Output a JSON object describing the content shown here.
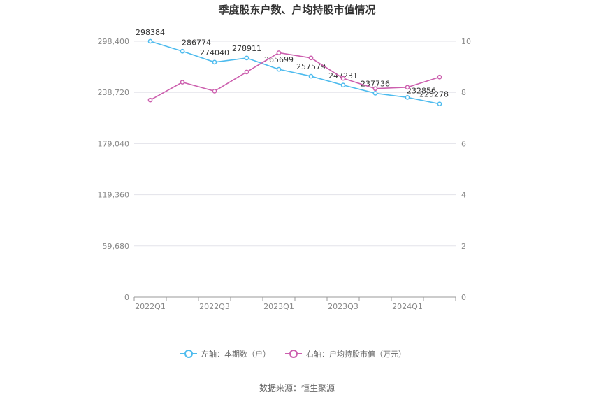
{
  "chart_data": {
    "type": "line",
    "title": "季度股东户数、户均持股市值情况",
    "categories": [
      "2022Q1",
      "2022Q2",
      "2022Q3",
      "2022Q4",
      "2023Q1",
      "2023Q2",
      "2023Q3",
      "2023Q4",
      "2024Q1",
      "2024Q2"
    ],
    "x_tick_labels": [
      "2022Q1",
      "2022Q3",
      "2023Q1",
      "2023Q3",
      "2024Q1"
    ],
    "left_axis": {
      "ylim": [
        0,
        298400
      ],
      "ticks": [
        "0",
        "59,680",
        "119,360",
        "179,040",
        "238,720",
        "298,400"
      ]
    },
    "right_axis": {
      "ylim": [
        0,
        10
      ],
      "ticks": [
        "0",
        "2",
        "4",
        "6",
        "8",
        "10"
      ]
    },
    "grid": true,
    "legend_position": "bottom",
    "series": [
      {
        "name": "左轴：本期数（户）",
        "axis": "left",
        "color": "#4dbbee",
        "values": [
          298384,
          286774,
          274040,
          278911,
          265699,
          257579,
          247231,
          237736,
          232856,
          225278
        ],
        "labels": [
          "298384",
          "286774",
          "274040",
          "278911",
          "265699",
          "257579",
          "247231",
          "237736",
          "232856",
          "225278"
        ]
      },
      {
        "name": "右轴：户均持股市值（万元）",
        "axis": "right",
        "color": "#cc5fae",
        "values": [
          7.7,
          8.4,
          8.05,
          8.8,
          9.55,
          9.35,
          8.55,
          8.15,
          8.2,
          8.6
        ]
      }
    ],
    "source": "数据来源：恒生聚源"
  }
}
